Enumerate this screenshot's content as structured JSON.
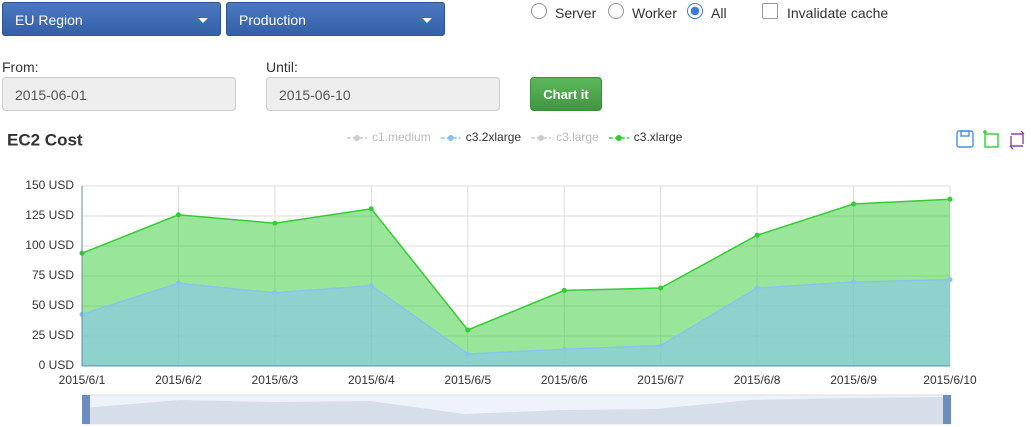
{
  "controls": {
    "region": "EU Region",
    "environment": "Production",
    "radios": [
      {
        "label": "Server",
        "checked": false
      },
      {
        "label": "Worker",
        "checked": false
      },
      {
        "label": "All",
        "checked": true
      }
    ],
    "checkbox": {
      "label": "Invalidate cache",
      "checked": false
    },
    "from_label": "From:",
    "from_value": "2015-06-01",
    "until_label": "Until:",
    "until_value": "2015-06-10",
    "button": "Chart it"
  },
  "chart_data": {
    "type": "area",
    "title": "EC2 Cost",
    "categories": [
      "2015/6/1",
      "2015/6/2",
      "2015/6/3",
      "2015/6/4",
      "2015/6/5",
      "2015/6/6",
      "2015/6/7",
      "2015/6/8",
      "2015/6/9",
      "2015/6/10"
    ],
    "series": [
      {
        "name": "c3.2xlarge",
        "color": "#88c4f0",
        "values": [
          43,
          69,
          61,
          67,
          10,
          14,
          17,
          65,
          70,
          72
        ]
      },
      {
        "name": "c3.xlarge",
        "color": "#33cc33",
        "values": [
          94,
          126,
          119,
          131,
          30,
          63,
          65,
          109,
          135,
          139
        ]
      }
    ],
    "hidden_series": [
      {
        "name": "c1.medium",
        "color": "#cccccc"
      },
      {
        "name": "c3.large",
        "color": "#cccccc"
      }
    ],
    "ylim": [
      0,
      150
    ],
    "yticks": [
      {
        "value": 0,
        "label": "0 USD"
      },
      {
        "value": 25,
        "label": "25 USD"
      },
      {
        "value": 50,
        "label": "50 USD"
      },
      {
        "value": 75,
        "label": "75 USD"
      },
      {
        "value": 100,
        "label": "100 USD"
      },
      {
        "value": 125,
        "label": "125 USD"
      },
      {
        "value": 150,
        "label": "150 USD"
      }
    ],
    "grid": true
  }
}
